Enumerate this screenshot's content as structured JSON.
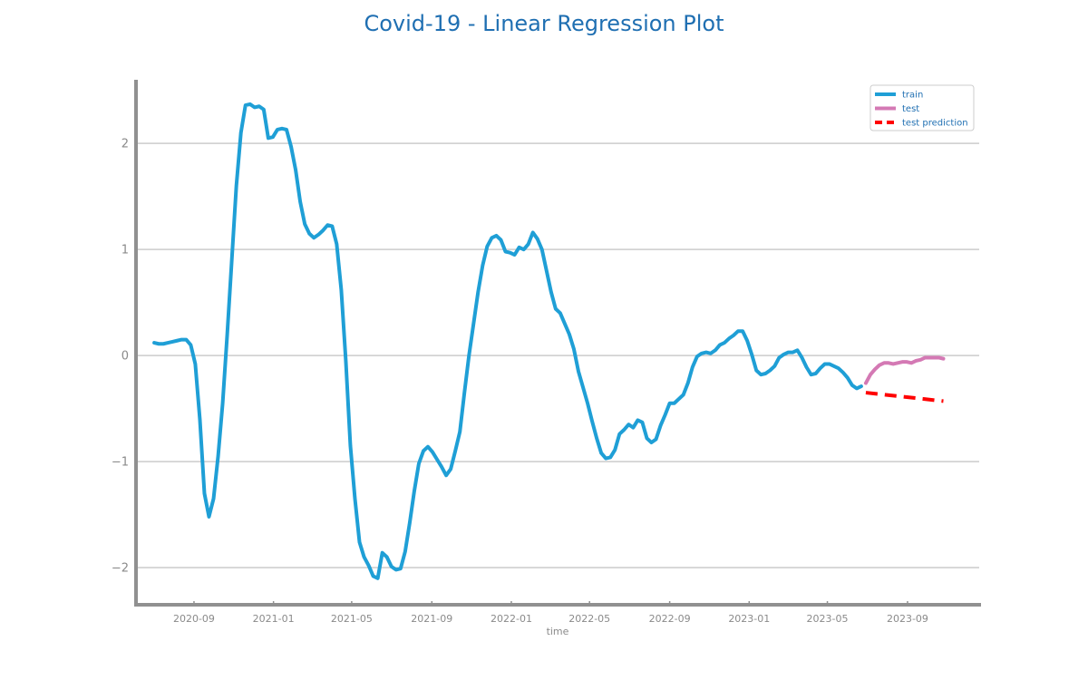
{
  "chart_data": {
    "type": "line",
    "title": "Covid-19 - Linear Regression Plot",
    "xlabel": "time",
    "ylabel": "",
    "ylim": [
      -2.35,
      2.6
    ],
    "xlim": [
      "2020-06-04",
      "2023-12-20"
    ],
    "grid": "horizontal",
    "legend_position": "top-right",
    "y_ticks": [
      {
        "value": -2,
        "label": "−2"
      },
      {
        "value": -1,
        "label": "−1"
      },
      {
        "value": 0,
        "label": "0"
      },
      {
        "value": 1,
        "label": "1"
      },
      {
        "value": 2,
        "label": "2"
      }
    ],
    "x_ticks": [
      {
        "value": "2020-09-01",
        "label": "2020-09"
      },
      {
        "value": "2021-01-01",
        "label": "2021-01"
      },
      {
        "value": "2021-05-01",
        "label": "2021-05"
      },
      {
        "value": "2021-09-01",
        "label": "2021-09"
      },
      {
        "value": "2022-01-01",
        "label": "2022-01"
      },
      {
        "value": "2022-05-01",
        "label": "2022-05"
      },
      {
        "value": "2022-09-01",
        "label": "2022-09"
      },
      {
        "value": "2023-01-01",
        "label": "2023-01"
      },
      {
        "value": "2023-05-01",
        "label": "2023-05"
      },
      {
        "value": "2023-09-01",
        "label": "2023-09"
      }
    ],
    "series": [
      {
        "name": "train",
        "color": "#1f9fd6",
        "style": "solid",
        "points": [
          [
            "2020-07-02",
            0.12
          ],
          [
            "2020-07-09",
            0.11
          ],
          [
            "2020-07-16",
            0.11
          ],
          [
            "2020-07-23",
            0.12
          ],
          [
            "2020-07-30",
            0.13
          ],
          [
            "2020-08-06",
            0.14
          ],
          [
            "2020-08-13",
            0.15
          ],
          [
            "2020-08-20",
            0.15
          ],
          [
            "2020-08-27",
            0.1
          ],
          [
            "2020-09-03",
            -0.08
          ],
          [
            "2020-09-10",
            -0.6
          ],
          [
            "2020-09-17",
            -1.3
          ],
          [
            "2020-09-24",
            -1.52
          ],
          [
            "2020-10-01",
            -1.35
          ],
          [
            "2020-10-08",
            -0.95
          ],
          [
            "2020-10-15",
            -0.45
          ],
          [
            "2020-10-22",
            0.2
          ],
          [
            "2020-10-29",
            0.9
          ],
          [
            "2020-11-05",
            1.6
          ],
          [
            "2020-11-12",
            2.1
          ],
          [
            "2020-11-19",
            2.36
          ],
          [
            "2020-11-26",
            2.37
          ],
          [
            "2020-12-03",
            2.34
          ],
          [
            "2020-12-10",
            2.35
          ],
          [
            "2020-12-17",
            2.32
          ],
          [
            "2020-12-24",
            2.05
          ],
          [
            "2020-12-31",
            2.06
          ],
          [
            "2021-01-07",
            2.13
          ],
          [
            "2021-01-14",
            2.14
          ],
          [
            "2021-01-21",
            2.13
          ],
          [
            "2021-01-28",
            1.97
          ],
          [
            "2021-02-04",
            1.75
          ],
          [
            "2021-02-11",
            1.45
          ],
          [
            "2021-02-18",
            1.24
          ],
          [
            "2021-02-25",
            1.15
          ],
          [
            "2021-03-04",
            1.11
          ],
          [
            "2021-03-11",
            1.14
          ],
          [
            "2021-03-18",
            1.18
          ],
          [
            "2021-03-25",
            1.23
          ],
          [
            "2021-04-01",
            1.22
          ],
          [
            "2021-04-08",
            1.05
          ],
          [
            "2021-04-15",
            0.62
          ],
          [
            "2021-04-22",
            -0.05
          ],
          [
            "2021-04-29",
            -0.85
          ],
          [
            "2021-05-06",
            -1.35
          ],
          [
            "2021-05-13",
            -1.76
          ],
          [
            "2021-05-20",
            -1.9
          ],
          [
            "2021-05-27",
            -1.98
          ],
          [
            "2021-06-03",
            -2.08
          ],
          [
            "2021-06-10",
            -2.1
          ],
          [
            "2021-06-17",
            -1.86
          ],
          [
            "2021-06-24",
            -1.9
          ],
          [
            "2021-07-01",
            -1.99
          ],
          [
            "2021-07-08",
            -2.02
          ],
          [
            "2021-07-15",
            -2.01
          ],
          [
            "2021-07-22",
            -1.85
          ],
          [
            "2021-07-29",
            -1.58
          ],
          [
            "2021-08-05",
            -1.28
          ],
          [
            "2021-08-12",
            -1.02
          ],
          [
            "2021-08-19",
            -0.9
          ],
          [
            "2021-08-26",
            -0.86
          ],
          [
            "2021-09-02",
            -0.91
          ],
          [
            "2021-09-09",
            -0.98
          ],
          [
            "2021-09-16",
            -1.05
          ],
          [
            "2021-09-23",
            -1.13
          ],
          [
            "2021-09-30",
            -1.07
          ],
          [
            "2021-10-07",
            -0.9
          ],
          [
            "2021-10-14",
            -0.72
          ],
          [
            "2021-10-21",
            -0.35
          ],
          [
            "2021-10-28",
            0.0
          ],
          [
            "2021-11-04",
            0.3
          ],
          [
            "2021-11-11",
            0.6
          ],
          [
            "2021-11-18",
            0.85
          ],
          [
            "2021-11-25",
            1.03
          ],
          [
            "2021-12-02",
            1.11
          ],
          [
            "2021-12-09",
            1.13
          ],
          [
            "2021-12-16",
            1.09
          ],
          [
            "2021-12-23",
            0.98
          ],
          [
            "2021-12-30",
            0.97
          ],
          [
            "2022-01-06",
            0.95
          ],
          [
            "2022-01-13",
            1.02
          ],
          [
            "2022-01-20",
            1.0
          ],
          [
            "2022-01-27",
            1.05
          ],
          [
            "2022-02-03",
            1.16
          ],
          [
            "2022-02-10",
            1.1
          ],
          [
            "2022-02-17",
            1.0
          ],
          [
            "2022-02-24",
            0.8
          ],
          [
            "2022-03-03",
            0.6
          ],
          [
            "2022-03-10",
            0.44
          ],
          [
            "2022-03-17",
            0.4
          ],
          [
            "2022-03-24",
            0.3
          ],
          [
            "2022-03-31",
            0.2
          ],
          [
            "2022-04-07",
            0.06
          ],
          [
            "2022-04-14",
            -0.15
          ],
          [
            "2022-04-21",
            -0.3
          ],
          [
            "2022-04-28",
            -0.45
          ],
          [
            "2022-05-05",
            -0.62
          ],
          [
            "2022-05-12",
            -0.78
          ],
          [
            "2022-05-19",
            -0.92
          ],
          [
            "2022-05-26",
            -0.97
          ],
          [
            "2022-06-02",
            -0.96
          ],
          [
            "2022-06-09",
            -0.89
          ],
          [
            "2022-06-16",
            -0.74
          ],
          [
            "2022-06-23",
            -0.7
          ],
          [
            "2022-06-30",
            -0.65
          ],
          [
            "2022-07-07",
            -0.68
          ],
          [
            "2022-07-14",
            -0.61
          ],
          [
            "2022-07-21",
            -0.63
          ],
          [
            "2022-07-28",
            -0.78
          ],
          [
            "2022-08-04",
            -0.82
          ],
          [
            "2022-08-11",
            -0.79
          ],
          [
            "2022-08-18",
            -0.66
          ],
          [
            "2022-08-25",
            -0.56
          ],
          [
            "2022-09-01",
            -0.45
          ],
          [
            "2022-09-08",
            -0.45
          ],
          [
            "2022-09-15",
            -0.41
          ],
          [
            "2022-09-22",
            -0.37
          ],
          [
            "2022-09-29",
            -0.26
          ],
          [
            "2022-10-06",
            -0.11
          ],
          [
            "2022-10-13",
            -0.01
          ],
          [
            "2022-10-20",
            0.02
          ],
          [
            "2022-10-27",
            0.03
          ],
          [
            "2022-11-03",
            0.02
          ],
          [
            "2022-11-10",
            0.05
          ],
          [
            "2022-11-17",
            0.1
          ],
          [
            "2022-11-24",
            0.12
          ],
          [
            "2022-12-01",
            0.16
          ],
          [
            "2022-12-08",
            0.19
          ],
          [
            "2022-12-15",
            0.23
          ],
          [
            "2022-12-22",
            0.23
          ],
          [
            "2022-12-29",
            0.14
          ],
          [
            "2023-01-05",
            0.01
          ],
          [
            "2023-01-12",
            -0.14
          ],
          [
            "2023-01-19",
            -0.18
          ],
          [
            "2023-01-26",
            -0.17
          ],
          [
            "2023-02-02",
            -0.14
          ],
          [
            "2023-02-09",
            -0.1
          ],
          [
            "2023-02-16",
            -0.02
          ],
          [
            "2023-02-23",
            0.01
          ],
          [
            "2023-03-02",
            0.03
          ],
          [
            "2023-03-09",
            0.03
          ],
          [
            "2023-03-16",
            0.05
          ],
          [
            "2023-03-23",
            -0.02
          ],
          [
            "2023-03-30",
            -0.11
          ],
          [
            "2023-04-06",
            -0.18
          ],
          [
            "2023-04-13",
            -0.17
          ],
          [
            "2023-04-20",
            -0.12
          ],
          [
            "2023-04-27",
            -0.08
          ],
          [
            "2023-05-04",
            -0.08
          ],
          [
            "2023-05-11",
            -0.1
          ],
          [
            "2023-05-18",
            -0.12
          ],
          [
            "2023-05-25",
            -0.16
          ],
          [
            "2023-06-01",
            -0.21
          ],
          [
            "2023-06-08",
            -0.28
          ],
          [
            "2023-06-15",
            -0.31
          ],
          [
            "2023-06-22",
            -0.29
          ]
        ]
      },
      {
        "name": "test",
        "color": "#d479b4",
        "style": "solid",
        "points": [
          [
            "2023-06-29",
            -0.26
          ],
          [
            "2023-07-06",
            -0.18
          ],
          [
            "2023-07-13",
            -0.13
          ],
          [
            "2023-07-20",
            -0.09
          ],
          [
            "2023-07-27",
            -0.07
          ],
          [
            "2023-08-03",
            -0.07
          ],
          [
            "2023-08-10",
            -0.08
          ],
          [
            "2023-08-17",
            -0.07
          ],
          [
            "2023-08-24",
            -0.06
          ],
          [
            "2023-08-31",
            -0.06
          ],
          [
            "2023-09-07",
            -0.07
          ],
          [
            "2023-09-14",
            -0.05
          ],
          [
            "2023-09-21",
            -0.04
          ],
          [
            "2023-09-28",
            -0.02
          ],
          [
            "2023-10-05",
            -0.02
          ],
          [
            "2023-10-12",
            -0.02
          ],
          [
            "2023-10-19",
            -0.02
          ],
          [
            "2023-10-26",
            -0.03
          ]
        ]
      },
      {
        "name": "test prediction",
        "color": "#ff0000",
        "style": "dashed",
        "points": [
          [
            "2023-06-29",
            -0.35
          ],
          [
            "2023-10-26",
            -0.43
          ]
        ]
      }
    ]
  }
}
